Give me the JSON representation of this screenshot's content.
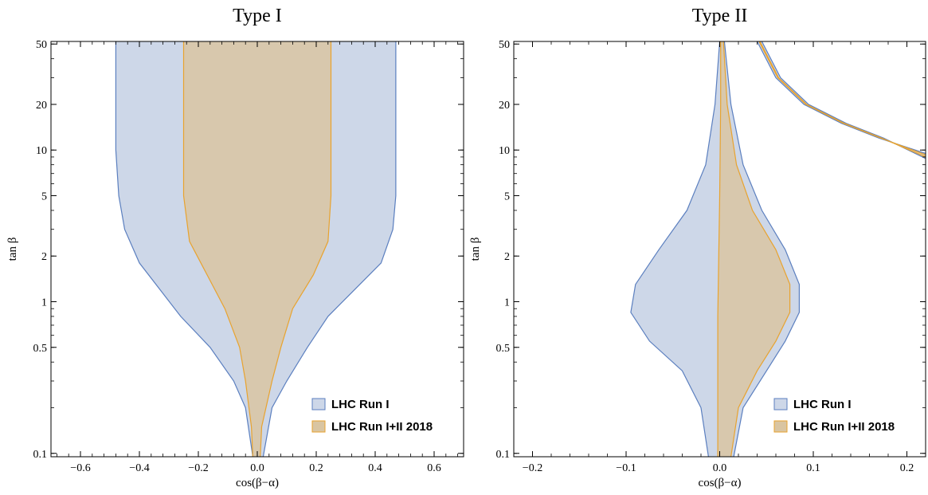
{
  "chart_data": [
    {
      "type": "area",
      "title": "Type I",
      "xlabel": "cos(β−α)",
      "ylabel": "tan β",
      "xlim": [
        -0.7,
        0.7
      ],
      "ylim": [
        0.095,
        52
      ],
      "y_scale": "log",
      "x_ticks": [
        -0.6,
        -0.4,
        -0.2,
        0.0,
        0.2,
        0.4,
        0.6
      ],
      "x_tick_labels": [
        "−0.6",
        "−0.4",
        "−0.2",
        "0.0",
        "0.2",
        "0.4",
        "0.6"
      ],
      "y_ticks": [
        0.1,
        0.5,
        1,
        2,
        5,
        10,
        20,
        50
      ],
      "y_tick_labels": [
        "0.1",
        "0.5",
        "1",
        "2",
        "5",
        "10",
        "20",
        "50"
      ],
      "legend_position": "bottom-right",
      "series": [
        {
          "name": "LHC Run I",
          "color": "#5b7fbf",
          "fill": "#cdd7e8",
          "regions": [
            {
              "left": [
                [
                  -0.015,
                  0.095
                ],
                [
                  -0.04,
                  0.2
                ],
                [
                  -0.08,
                  0.3
                ],
                [
                  -0.16,
                  0.5
                ],
                [
                  -0.26,
                  0.8
                ],
                [
                  -0.33,
                  1.2
                ],
                [
                  -0.4,
                  1.8
                ],
                [
                  -0.45,
                  3
                ],
                [
                  -0.47,
                  5
                ],
                [
                  -0.48,
                  10
                ],
                [
                  -0.48,
                  52
                ]
              ],
              "right": [
                [
                  0.02,
                  0.095
                ],
                [
                  0.05,
                  0.2
                ],
                [
                  0.1,
                  0.3
                ],
                [
                  0.17,
                  0.5
                ],
                [
                  0.24,
                  0.8
                ],
                [
                  0.33,
                  1.2
                ],
                [
                  0.42,
                  1.8
                ],
                [
                  0.46,
                  3
                ],
                [
                  0.47,
                  5
                ],
                [
                  0.47,
                  10
                ],
                [
                  0.47,
                  52
                ]
              ]
            }
          ]
        },
        {
          "name": "LHC Run I+II 2018",
          "color": "#e8a32f",
          "fill": "#d9c5a2",
          "regions": [
            {
              "left": [
                [
                  -0.015,
                  0.095
                ],
                [
                  -0.02,
                  0.15
                ],
                [
                  -0.04,
                  0.3
                ],
                [
                  -0.06,
                  0.5
                ],
                [
                  -0.11,
                  0.9
                ],
                [
                  -0.17,
                  1.5
                ],
                [
                  -0.23,
                  2.5
                ],
                [
                  -0.25,
                  5
                ],
                [
                  -0.25,
                  10
                ],
                [
                  -0.25,
                  52
                ]
              ],
              "right": [
                [
                  0.01,
                  0.095
                ],
                [
                  0.015,
                  0.15
                ],
                [
                  0.05,
                  0.3
                ],
                [
                  0.08,
                  0.5
                ],
                [
                  0.12,
                  0.9
                ],
                [
                  0.19,
                  1.5
                ],
                [
                  0.24,
                  2.5
                ],
                [
                  0.25,
                  5
                ],
                [
                  0.25,
                  10
                ],
                [
                  0.25,
                  52
                ]
              ]
            }
          ]
        }
      ]
    },
    {
      "type": "area",
      "title": "Type II",
      "xlabel": "cos(β−α)",
      "ylabel": "tan β",
      "xlim": [
        -0.22,
        0.22
      ],
      "ylim": [
        0.095,
        52
      ],
      "y_scale": "log",
      "x_ticks": [
        -0.2,
        -0.1,
        0.0,
        0.1,
        0.2
      ],
      "x_tick_labels": [
        "−0.2",
        "−0.1",
        "0.0",
        "0.1",
        "0.2"
      ],
      "y_ticks": [
        0.1,
        0.5,
        1,
        2,
        5,
        10,
        20,
        50
      ],
      "y_tick_labels": [
        "0.1",
        "0.5",
        "1",
        "2",
        "5",
        "10",
        "20",
        "50"
      ],
      "legend_position": "bottom-right",
      "series": [
        {
          "name": "LHC Run I",
          "color": "#5b7fbf",
          "fill": "#cdd7e8",
          "regions": [
            {
              "left": [
                [
                  -0.012,
                  0.095
                ],
                [
                  -0.02,
                  0.2
                ],
                [
                  -0.04,
                  0.35
                ],
                [
                  -0.075,
                  0.55
                ],
                [
                  -0.095,
                  0.85
                ],
                [
                  -0.09,
                  1.3
                ],
                [
                  -0.065,
                  2.2
                ],
                [
                  -0.035,
                  4
                ],
                [
                  -0.015,
                  8
                ],
                [
                  -0.005,
                  20
                ],
                [
                  0.0,
                  52
                ]
              ],
              "right": [
                [
                  0.015,
                  0.095
                ],
                [
                  0.025,
                  0.2
                ],
                [
                  0.05,
                  0.35
                ],
                [
                  0.07,
                  0.55
                ],
                [
                  0.085,
                  0.85
                ],
                [
                  0.085,
                  1.3
                ],
                [
                  0.07,
                  2.2
                ],
                [
                  0.045,
                  4
                ],
                [
                  0.025,
                  8
                ],
                [
                  0.012,
                  20
                ],
                [
                  0.005,
                  52
                ]
              ]
            },
            {
              "left": [
                [
                  0.04,
                  52
                ],
                [
                  0.06,
                  30
                ],
                [
                  0.09,
                  20
                ],
                [
                  0.13,
                  15
                ],
                [
                  0.17,
                  12
                ],
                [
                  0.22,
                  9.5
                ]
              ],
              "right": [
                [
                  0.045,
                  52
                ],
                [
                  0.065,
                  30
                ],
                [
                  0.095,
                  20
                ],
                [
                  0.135,
                  15
                ],
                [
                  0.175,
                  12
                ],
                [
                  0.22,
                  8.8
                ]
              ]
            }
          ]
        },
        {
          "name": "LHC Run I+II 2018",
          "color": "#e8a32f",
          "fill": "#d9c5a2",
          "regions": [
            {
              "left": [
                [
                  -0.002,
                  0.095
                ],
                [
                  -0.002,
                  0.3
                ],
                [
                  -0.002,
                  0.8
                ],
                [
                  -0.001,
                  2
                ],
                [
                  0.0,
                  5
                ],
                [
                  0.001,
                  20
                ],
                [
                  0.001,
                  52
                ]
              ],
              "right": [
                [
                  0.012,
                  0.095
                ],
                [
                  0.02,
                  0.2
                ],
                [
                  0.04,
                  0.35
                ],
                [
                  0.06,
                  0.55
                ],
                [
                  0.075,
                  0.85
                ],
                [
                  0.075,
                  1.3
                ],
                [
                  0.06,
                  2.2
                ],
                [
                  0.035,
                  4
                ],
                [
                  0.018,
                  8
                ],
                [
                  0.008,
                  20
                ],
                [
                  0.004,
                  52
                ]
              ]
            },
            {
              "left": [
                [
                  0.042,
                  52
                ],
                [
                  0.062,
                  30
                ],
                [
                  0.092,
                  20
                ],
                [
                  0.132,
                  15
                ],
                [
                  0.172,
                  12
                ],
                [
                  0.22,
                  9.3
                ]
              ],
              "right": [
                [
                  0.043,
                  52
                ],
                [
                  0.063,
                  30
                ],
                [
                  0.093,
                  20
                ],
                [
                  0.133,
                  15
                ],
                [
                  0.173,
                  12
                ],
                [
                  0.22,
                  9.0
                ]
              ]
            }
          ]
        }
      ]
    }
  ]
}
